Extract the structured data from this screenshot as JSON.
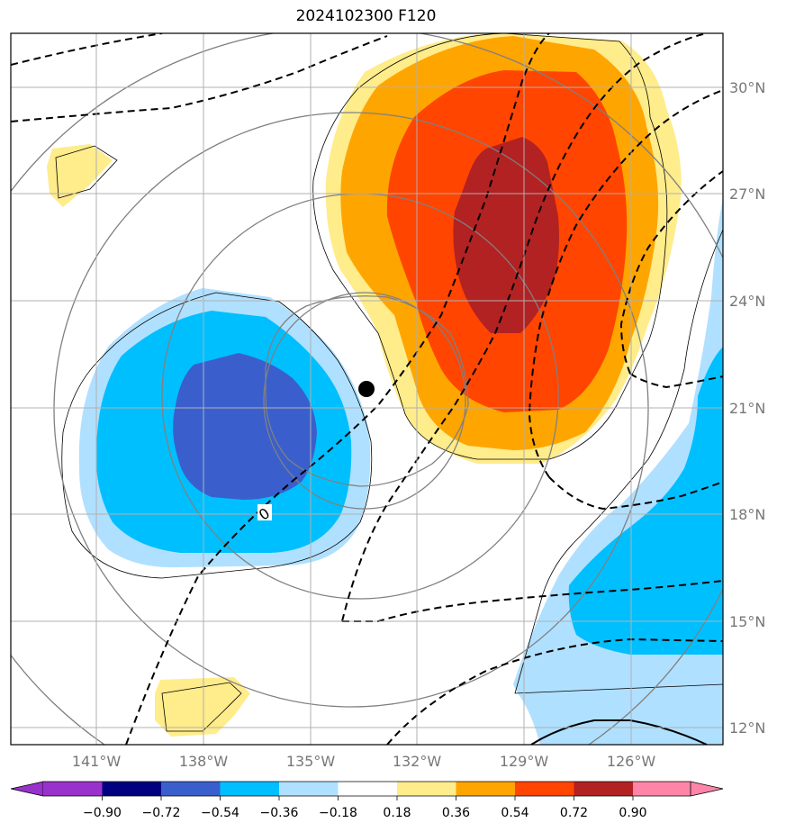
{
  "title": "2024102300 F120",
  "lat_labels": [
    "30°N",
    "27°N",
    "24°N",
    "21°N",
    "18°N",
    "15°N",
    "12°N"
  ],
  "lon_labels": [
    "141°W",
    "138°W",
    "135°W",
    "132°W",
    "129°W",
    "126°W"
  ],
  "contour_label": "0",
  "colorbar": {
    "ticks": [
      "−0.90",
      "−0.72",
      "−0.54",
      "−0.36",
      "−0.18",
      "0.18",
      "0.36",
      "0.54",
      "0.72",
      "0.90"
    ],
    "colors": [
      "#9932cc",
      "#000080",
      "#3a5fcd",
      "#00bfff",
      "#b0e0ff",
      "#ffffff",
      "#ffec8b",
      "#ffa500",
      "#ff4500",
      "#b22222",
      "#ff85a8"
    ]
  },
  "fill_colors": {
    "light_blue": "#b0e0ff",
    "blue": "#00bfff",
    "dark_blue": "#3a5fcd",
    "light_yellow": "#ffec8b",
    "orange": "#ffa500",
    "red_orange": "#ff4500",
    "dark_red": "#b22222"
  },
  "storm_marker": "storm-center"
}
